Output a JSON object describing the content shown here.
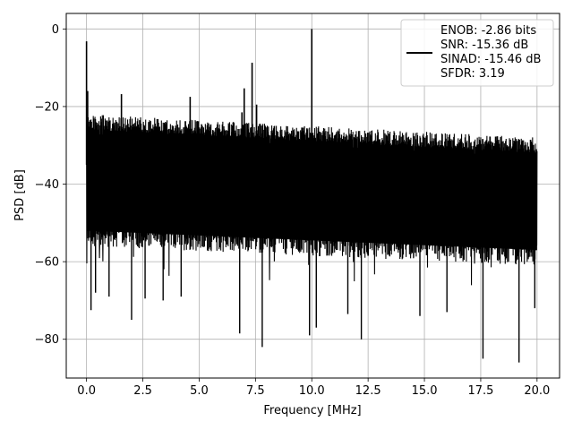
{
  "chart_data": {
    "type": "line",
    "xlabel": "Frequency [MHz]",
    "ylabel": "PSD [dB]",
    "xlim": [
      -0.9,
      21.0
    ],
    "ylim": [
      -90,
      4
    ],
    "xticks": [
      0.0,
      2.5,
      5.0,
      7.5,
      10.0,
      12.5,
      15.0,
      17.5,
      20.0
    ],
    "xtick_labels": [
      "0.0",
      "2.5",
      "5.0",
      "7.5",
      "10.0",
      "12.5",
      "15.0",
      "17.5",
      "20.0"
    ],
    "yticks": [
      0,
      -20,
      -40,
      -60,
      -80
    ],
    "ytick_labels": [
      "0",
      "−20",
      "−40",
      "−60",
      "−80"
    ],
    "grid": true,
    "legend_position": "top-right",
    "line_color": "#000000",
    "noise_band": {
      "x_start": 0.0,
      "x_end": 20.0,
      "upper_start": -24,
      "upper_end": -30,
      "lower_start": -55,
      "lower_end": -60
    },
    "spikes": [
      {
        "x": 0.0,
        "y": -3.2
      },
      {
        "x": 0.05,
        "y": -16
      },
      {
        "x": 1.55,
        "y": -16.8
      },
      {
        "x": 4.6,
        "y": -17.5
      },
      {
        "x": 6.9,
        "y": -21.5
      },
      {
        "x": 7.0,
        "y": -15.3
      },
      {
        "x": 7.35,
        "y": -8.7
      },
      {
        "x": 7.55,
        "y": -19.5
      },
      {
        "x": 10.0,
        "y": 0.0
      }
    ],
    "dips": [
      {
        "x": 0.2,
        "y": -72.5
      },
      {
        "x": 0.4,
        "y": -68.0
      },
      {
        "x": 1.0,
        "y": -69.0
      },
      {
        "x": 2.0,
        "y": -75.0
      },
      {
        "x": 2.6,
        "y": -69.5
      },
      {
        "x": 3.4,
        "y": -70.0
      },
      {
        "x": 4.2,
        "y": -69.0
      },
      {
        "x": 6.8,
        "y": -78.5
      },
      {
        "x": 7.8,
        "y": -82.0
      },
      {
        "x": 9.9,
        "y": -79.0
      },
      {
        "x": 10.2,
        "y": -77.0
      },
      {
        "x": 11.6,
        "y": -73.5
      },
      {
        "x": 12.2,
        "y": -80.0
      },
      {
        "x": 14.8,
        "y": -74.0
      },
      {
        "x": 16.0,
        "y": -73.0
      },
      {
        "x": 17.6,
        "y": -85.0
      },
      {
        "x": 19.2,
        "y": -86.0
      },
      {
        "x": 19.9,
        "y": -72.0
      }
    ],
    "series": [
      {
        "legend_lines": [
          "ENOB: -2.86 bits",
          "SNR: -15.36 dB",
          "SINAD: -15.46 dB",
          "SFDR: 3.19"
        ]
      }
    ]
  }
}
